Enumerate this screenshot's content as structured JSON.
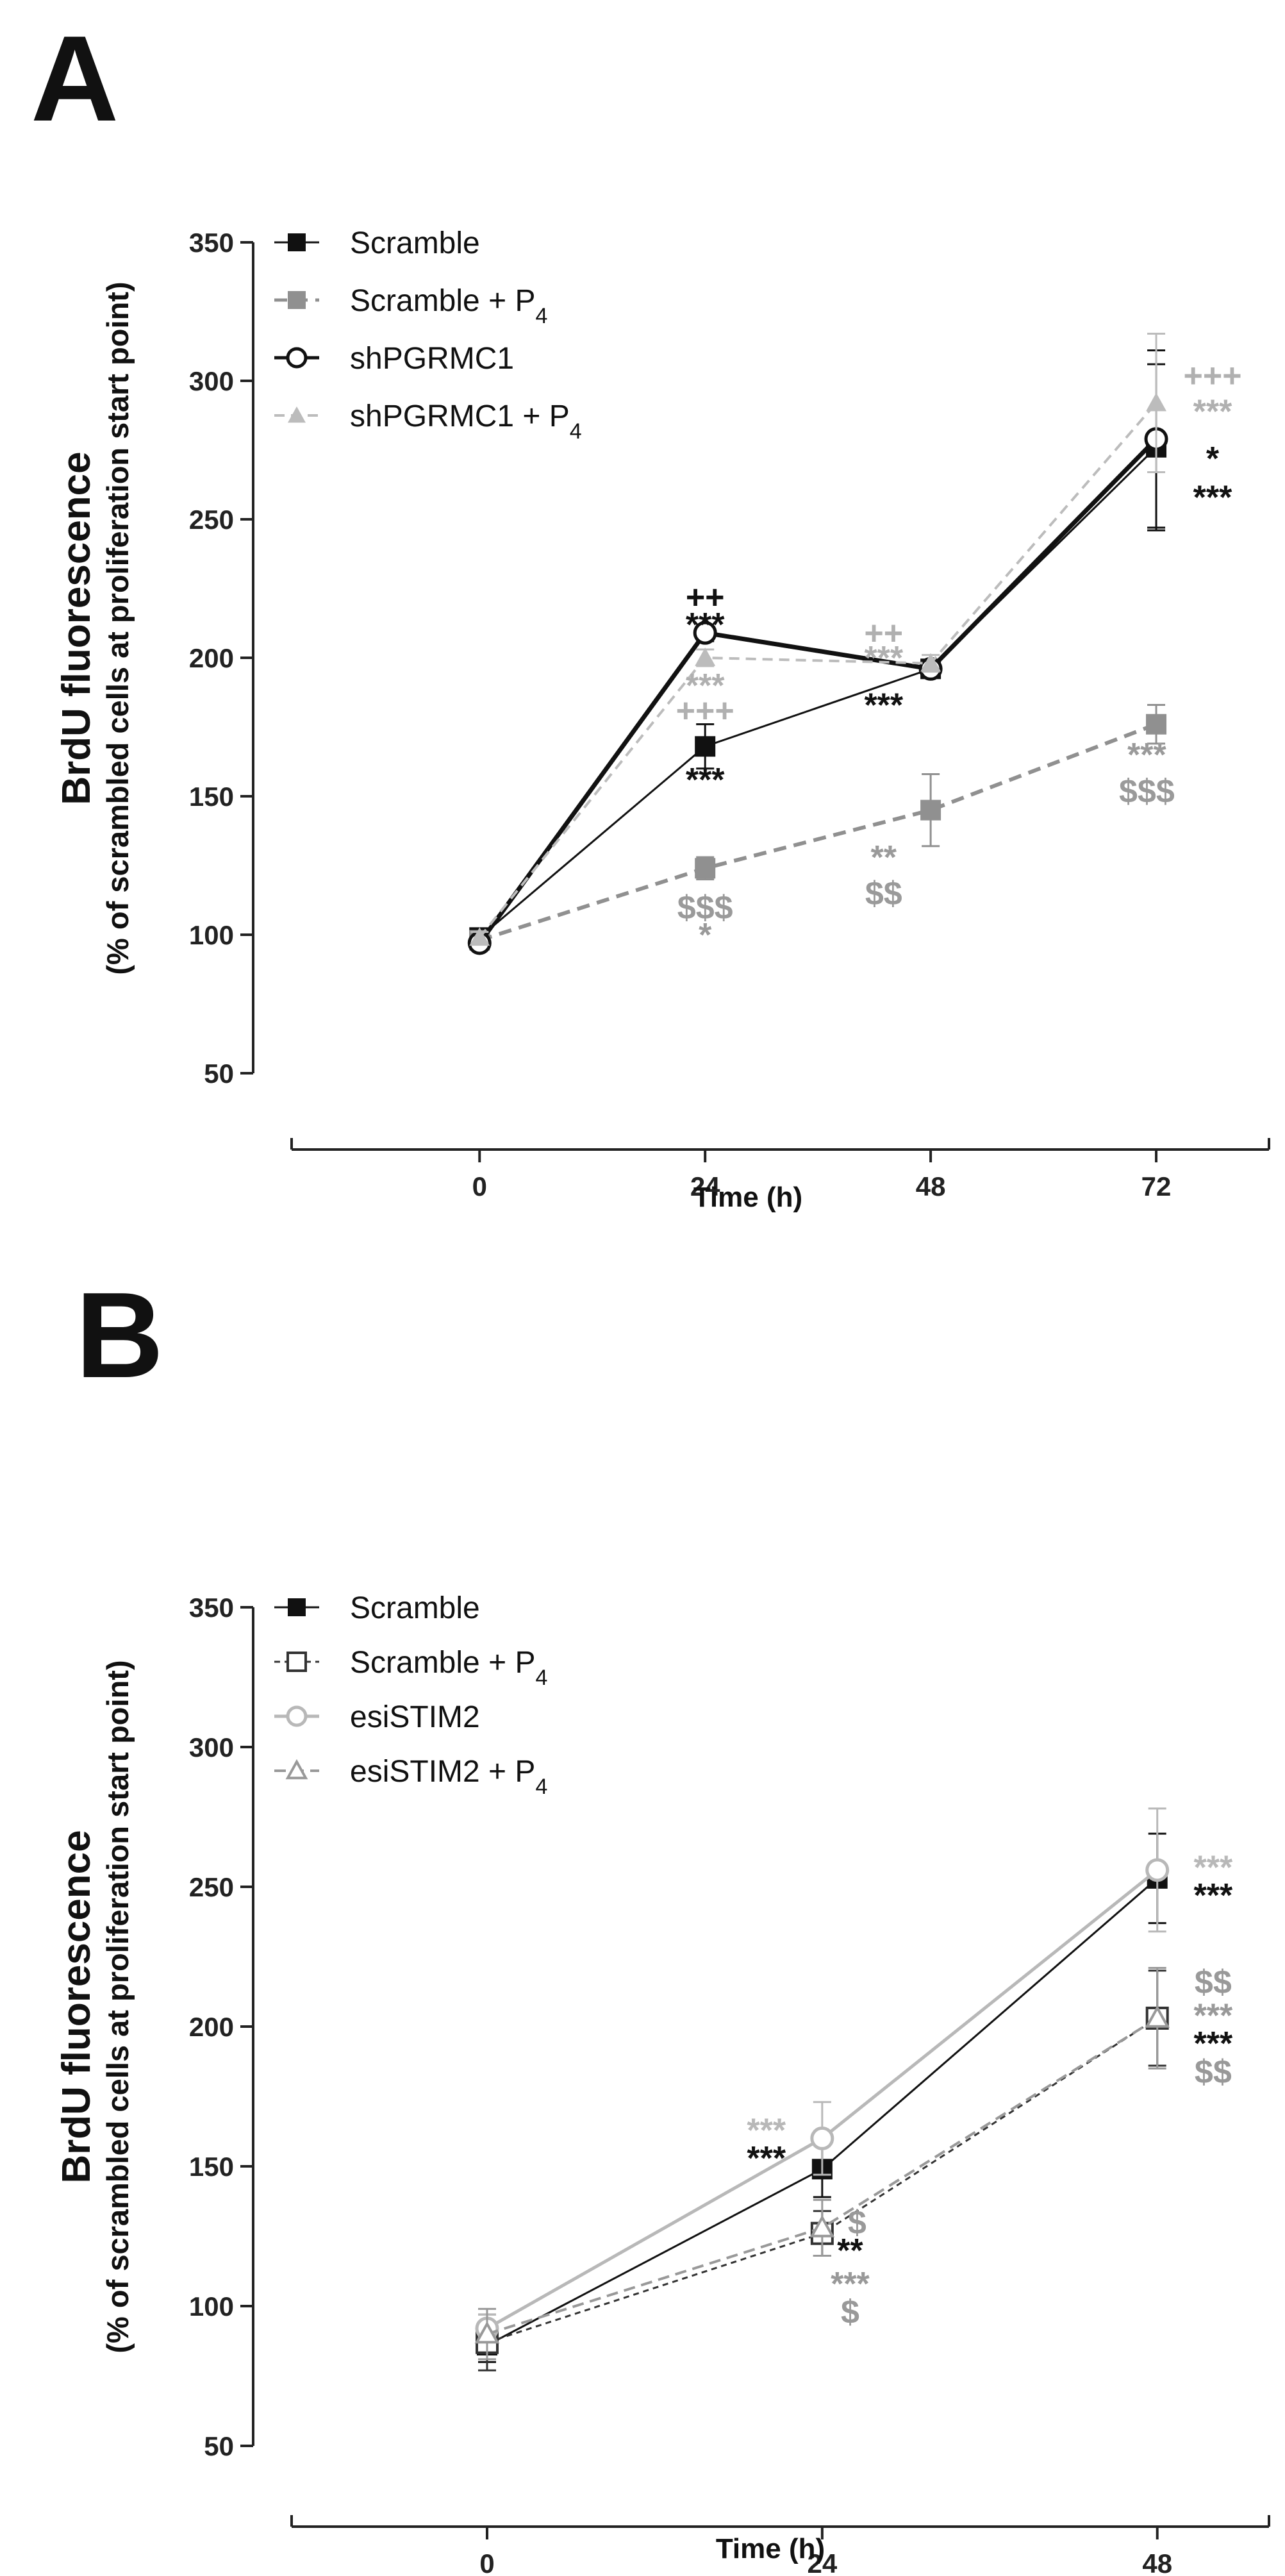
{
  "chart_data": [
    {
      "type": "line",
      "panel": "A",
      "xlabel": "Time (h)",
      "ylabel": "BrdU fluorescence",
      "ylabel_sub": "(% of scrambled cells at proliferation start point)",
      "x": [
        0,
        24,
        48,
        72
      ],
      "xlim": [
        -20,
        84
      ],
      "ylim": [
        50,
        350
      ],
      "yticks": [
        50,
        100,
        150,
        200,
        250,
        300,
        350
      ],
      "legend_position": "top-left",
      "series": [
        {
          "name": "Scramble",
          "values": [
            99,
            168,
            196,
            276
          ],
          "err": [
            2,
            8,
            3,
            30
          ],
          "color": "#111111",
          "marker": "square",
          "dash": "",
          "width": 3
        },
        {
          "name": "Scramble + P4",
          "values": [
            98,
            124,
            145,
            176
          ],
          "err": [
            2,
            4,
            13,
            7
          ],
          "color": "#909090",
          "marker": "square",
          "dash": "20 12",
          "width": 6
        },
        {
          "name": "shPGRMC1",
          "values": [
            97,
            209,
            196,
            279
          ],
          "err": [
            2,
            3,
            3,
            32
          ],
          "color": "#111111",
          "marker": "circle-open",
          "dash": "",
          "width": 7
        },
        {
          "name": "shPGRMC1 + P4",
          "values": [
            99,
            200,
            198,
            292
          ],
          "err": [
            2,
            3,
            3,
            25
          ],
          "color": "#bcbcbc",
          "marker": "triangle",
          "dash": "16 10",
          "width": 4
        }
      ],
      "annotations": [
        {
          "text": "++",
          "x": 24,
          "y": 222,
          "color": "#111111"
        },
        {
          "text": "***",
          "x": 24,
          "y": 212,
          "color": "#111111"
        },
        {
          "text": "***",
          "x": 24,
          "y": 190,
          "color": "#b0b0b0"
        },
        {
          "text": "+++",
          "x": 24,
          "y": 181,
          "color": "#b0b0b0"
        },
        {
          "text": "***",
          "x": 24,
          "y": 156,
          "color": "#111111"
        },
        {
          "text": "$$$",
          "x": 24,
          "y": 110,
          "color": "#9a9a9a"
        },
        {
          "text": "*",
          "x": 24,
          "y": 100,
          "color": "#9a9a9a"
        },
        {
          "text": "++",
          "x": 43,
          "y": 209,
          "color": "#b0b0b0"
        },
        {
          "text": "***",
          "x": 43,
          "y": 200,
          "color": "#b0b0b0"
        },
        {
          "text": "***",
          "x": 43,
          "y": 183,
          "color": "#111111"
        },
        {
          "text": "**",
          "x": 43,
          "y": 128,
          "color": "#9a9a9a"
        },
        {
          "text": "$$",
          "x": 43,
          "y": 115,
          "color": "#9a9a9a"
        },
        {
          "text": "+++",
          "x": 78,
          "y": 302,
          "color": "#b0b0b0"
        },
        {
          "text": "***",
          "x": 78,
          "y": 289,
          "color": "#b0b0b0"
        },
        {
          "text": "*",
          "x": 78,
          "y": 272,
          "color": "#111111"
        },
        {
          "text": "***",
          "x": 78,
          "y": 258,
          "color": "#111111"
        },
        {
          "text": "***",
          "x": 71,
          "y": 165,
          "color": "#9a9a9a"
        },
        {
          "text": "$$$",
          "x": 71,
          "y": 152,
          "color": "#9a9a9a"
        }
      ]
    },
    {
      "type": "line",
      "panel": "B",
      "xlabel": "Time (h)",
      "ylabel": "BrdU fluorescence",
      "ylabel_sub": "(% of scrambled cells at proliferation start point)",
      "x": [
        0,
        24,
        48
      ],
      "xlim": [
        -14,
        56
      ],
      "ylim": [
        50,
        350
      ],
      "yticks": [
        50,
        100,
        150,
        200,
        250,
        300,
        350
      ],
      "legend_position": "top-left",
      "series": [
        {
          "name": "Scramble",
          "values": [
            86,
            149,
            253
          ],
          "err": [
            6,
            10,
            16
          ],
          "color": "#111111",
          "marker": "square",
          "dash": "",
          "width": 3
        },
        {
          "name": "Scramble + P4",
          "values": [
            87,
            126,
            203
          ],
          "err": [
            10,
            8,
            17
          ],
          "color": "#333333",
          "marker": "square-open",
          "dash": "9 7",
          "width": 3
        },
        {
          "name": "esiSTIM2",
          "values": [
            92,
            160,
            256
          ],
          "err": [
            5,
            13,
            22
          ],
          "color": "#b8b8b8",
          "marker": "circle-open",
          "dash": "",
          "width": 5
        },
        {
          "name": "esiSTIM2 + P4",
          "values": [
            90,
            128,
            203
          ],
          "err": [
            9,
            10,
            18
          ],
          "color": "#999999",
          "marker": "triangle-open",
          "dash": "18 10",
          "width": 4
        }
      ],
      "annotations": [
        {
          "text": "***",
          "x": 20,
          "y": 163,
          "color": "#b8b8b8"
        },
        {
          "text": "***",
          "x": 20,
          "y": 153,
          "color": "#111111"
        },
        {
          "text": "$",
          "x": 26.5,
          "y": 130,
          "color": "#999999"
        },
        {
          "text": "**",
          "x": 26,
          "y": 120,
          "color": "#111111"
        },
        {
          "text": "***",
          "x": 26,
          "y": 108,
          "color": "#999999"
        },
        {
          "text": "$",
          "x": 26,
          "y": 98,
          "color": "#999999"
        },
        {
          "text": "***",
          "x": 52,
          "y": 257,
          "color": "#b8b8b8"
        },
        {
          "text": "***",
          "x": 52,
          "y": 247,
          "color": "#111111"
        },
        {
          "text": "$$",
          "x": 52,
          "y": 216,
          "color": "#999999"
        },
        {
          "text": "***",
          "x": 52,
          "y": 204,
          "color": "#999999"
        },
        {
          "text": "***",
          "x": 52,
          "y": 194,
          "color": "#111111"
        },
        {
          "text": "$$",
          "x": 52,
          "y": 184,
          "color": "#999999"
        }
      ]
    }
  ]
}
